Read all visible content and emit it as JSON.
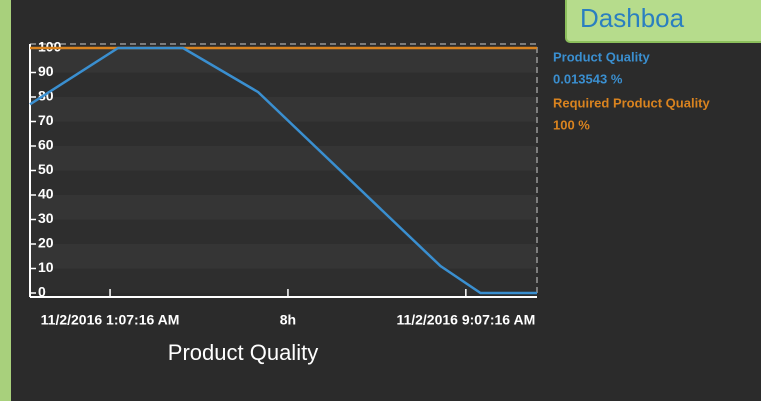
{
  "tab": {
    "label": "Dashboa"
  },
  "chart_data": {
    "type": "line",
    "x_label": "Product Quality",
    "x": [
      -1.8,
      0.18,
      1.64,
      3.33,
      7.43,
      8.33,
      9.6
    ],
    "series": [
      {
        "name": "Product Quality",
        "color": "#3a8fd0",
        "current_label": "0.013543 %",
        "values": [
          77,
          100,
          100,
          82,
          11,
          0,
          0
        ]
      },
      {
        "name": "Required Product Quality",
        "color": "#d9831f",
        "current_label": "100 %",
        "values": [
          100,
          100,
          100,
          100,
          100,
          100,
          100
        ]
      }
    ],
    "xlim": [
      -1.8,
      9.6
    ],
    "xticks": [
      {
        "value": 0,
        "label": "11/2/2016 1:07:16 AM"
      },
      {
        "value": 4,
        "label": "8h"
      },
      {
        "value": 8,
        "label": "11/2/2016 9:07:16 AM"
      }
    ],
    "ylim": [
      0,
      100
    ],
    "yticks": [
      0,
      10,
      20,
      30,
      40,
      50,
      60,
      70,
      80,
      90,
      100
    ],
    "stripes": true
  }
}
